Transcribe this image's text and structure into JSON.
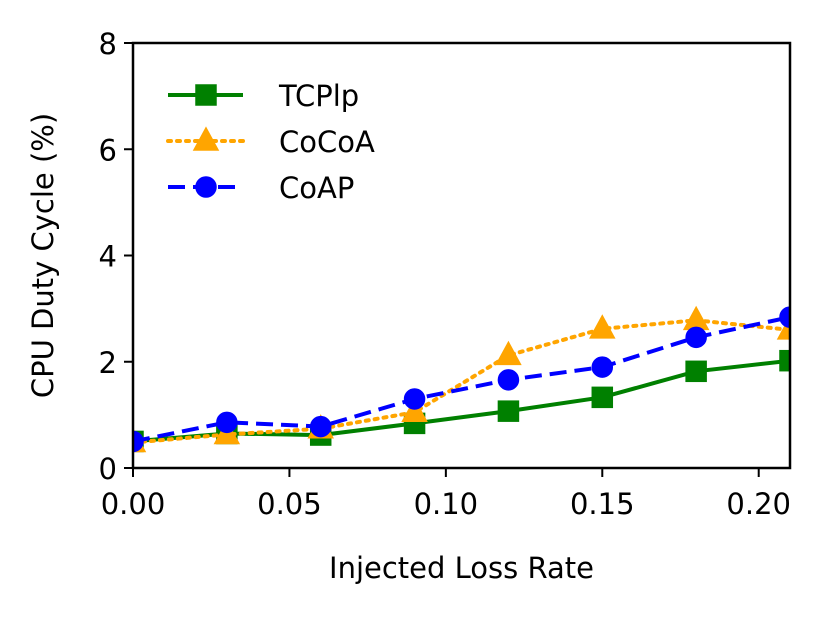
{
  "chart_data": {
    "type": "line",
    "title": "",
    "xlabel": "Injected Loss Rate",
    "ylabel": "CPU Duty Cycle (%)",
    "xlim": [
      0.0,
      0.21
    ],
    "ylim": [
      0,
      8
    ],
    "xticks": [
      0.0,
      0.05,
      0.1,
      0.15,
      0.2
    ],
    "xtick_labels": [
      "0.00",
      "0.05",
      "0.10",
      "0.15",
      "0.20"
    ],
    "yticks": [
      0,
      2,
      4,
      6,
      8
    ],
    "ytick_labels": [
      "0",
      "2",
      "4",
      "6",
      "8"
    ],
    "grid": false,
    "legend_position": "top-left",
    "x": [
      0.0,
      0.03,
      0.06,
      0.09,
      0.12,
      0.15,
      0.18,
      0.21
    ],
    "series": [
      {
        "name": "TCPlp",
        "values": [
          0.5,
          0.65,
          0.62,
          0.84,
          1.07,
          1.33,
          1.82,
          2.02
        ],
        "color": "#008000",
        "line_style": "solid",
        "marker": "square"
      },
      {
        "name": "CoCoA",
        "values": [
          0.48,
          0.63,
          0.74,
          1.05,
          2.12,
          2.62,
          2.78,
          2.6
        ],
        "color": "#ffa500",
        "line_style": "dotted",
        "marker": "triangle"
      },
      {
        "name": "CoAP",
        "values": [
          0.5,
          0.86,
          0.78,
          1.3,
          1.66,
          1.9,
          2.46,
          2.84
        ],
        "color": "#0000ff",
        "line_style": "dashed",
        "marker": "circle"
      }
    ]
  }
}
